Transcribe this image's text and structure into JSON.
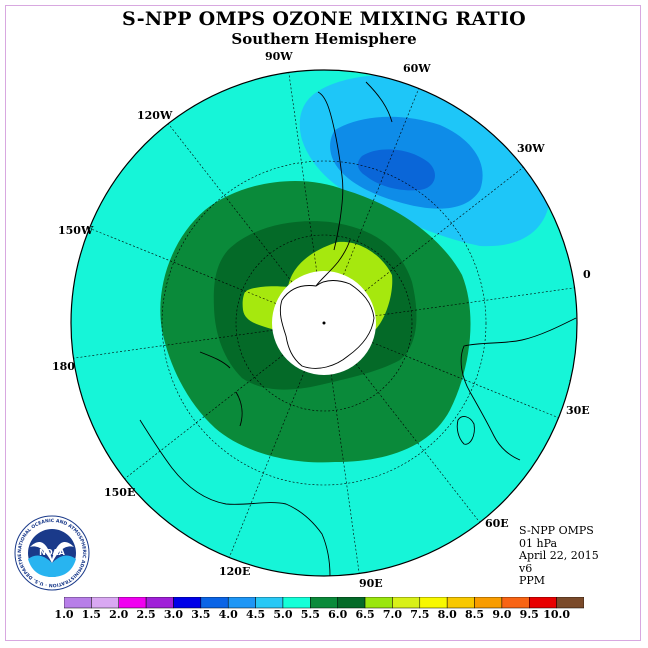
{
  "title": "S-NPP OMPS OZONE MIXING RATIO",
  "subtitle": "Southern Hemisphere",
  "info": {
    "instrument": "S-NPP OMPS",
    "pressure": "01 hPa",
    "date": "April 22, 2015",
    "version": "v6",
    "units": "PPM"
  },
  "lon_labels": {
    "lon_0": "0",
    "lon_30w": "30W",
    "lon_60w": "60W",
    "lon_90w": "90W",
    "lon_120w": "120W",
    "lon_150w": "150W",
    "lon_180": "180",
    "lon_150e": "150E",
    "lon_120e": "120E",
    "lon_90e": "90E",
    "lon_60e": "60E",
    "lon_30e": "30E"
  },
  "logo": {
    "text": "NOAA",
    "ring_text": "NATIONAL OCEANIC AND ATMOSPHERIC ADMINISTRATION · U.S. DEPARTMENT OF COMMERCE"
  },
  "colorbar": {
    "labels": [
      "1.0",
      "1.5",
      "2.0",
      "2.5",
      "3.0",
      "3.5",
      "4.0",
      "4.5",
      "5.0",
      "5.5",
      "6.0",
      "6.5",
      "7.0",
      "7.5",
      "8.0",
      "8.5",
      "9.0",
      "9.5",
      "10.0"
    ],
    "colors": [
      "#b77ee8",
      "#d9a8f2",
      "#f000f0",
      "#a020d8",
      "#0000e8",
      "#0a64e6",
      "#1e96f5",
      "#28c8f5",
      "#14ffd8",
      "#0a8a3a",
      "#046a28",
      "#9ae60e",
      "#d8f018",
      "#f8f800",
      "#f8c800",
      "#f89c00",
      "#f86414",
      "#e80000",
      "#7a4a2a"
    ],
    "map_colors": {
      "bg": "#16f5d8",
      "green": "#0a8a3a",
      "dark_green": "#046a28",
      "lime": "#a6e80e",
      "light_blue": "#1ec6f8",
      "mid_blue": "#0e8ce8",
      "deep_blue": "#0a66d8"
    }
  }
}
